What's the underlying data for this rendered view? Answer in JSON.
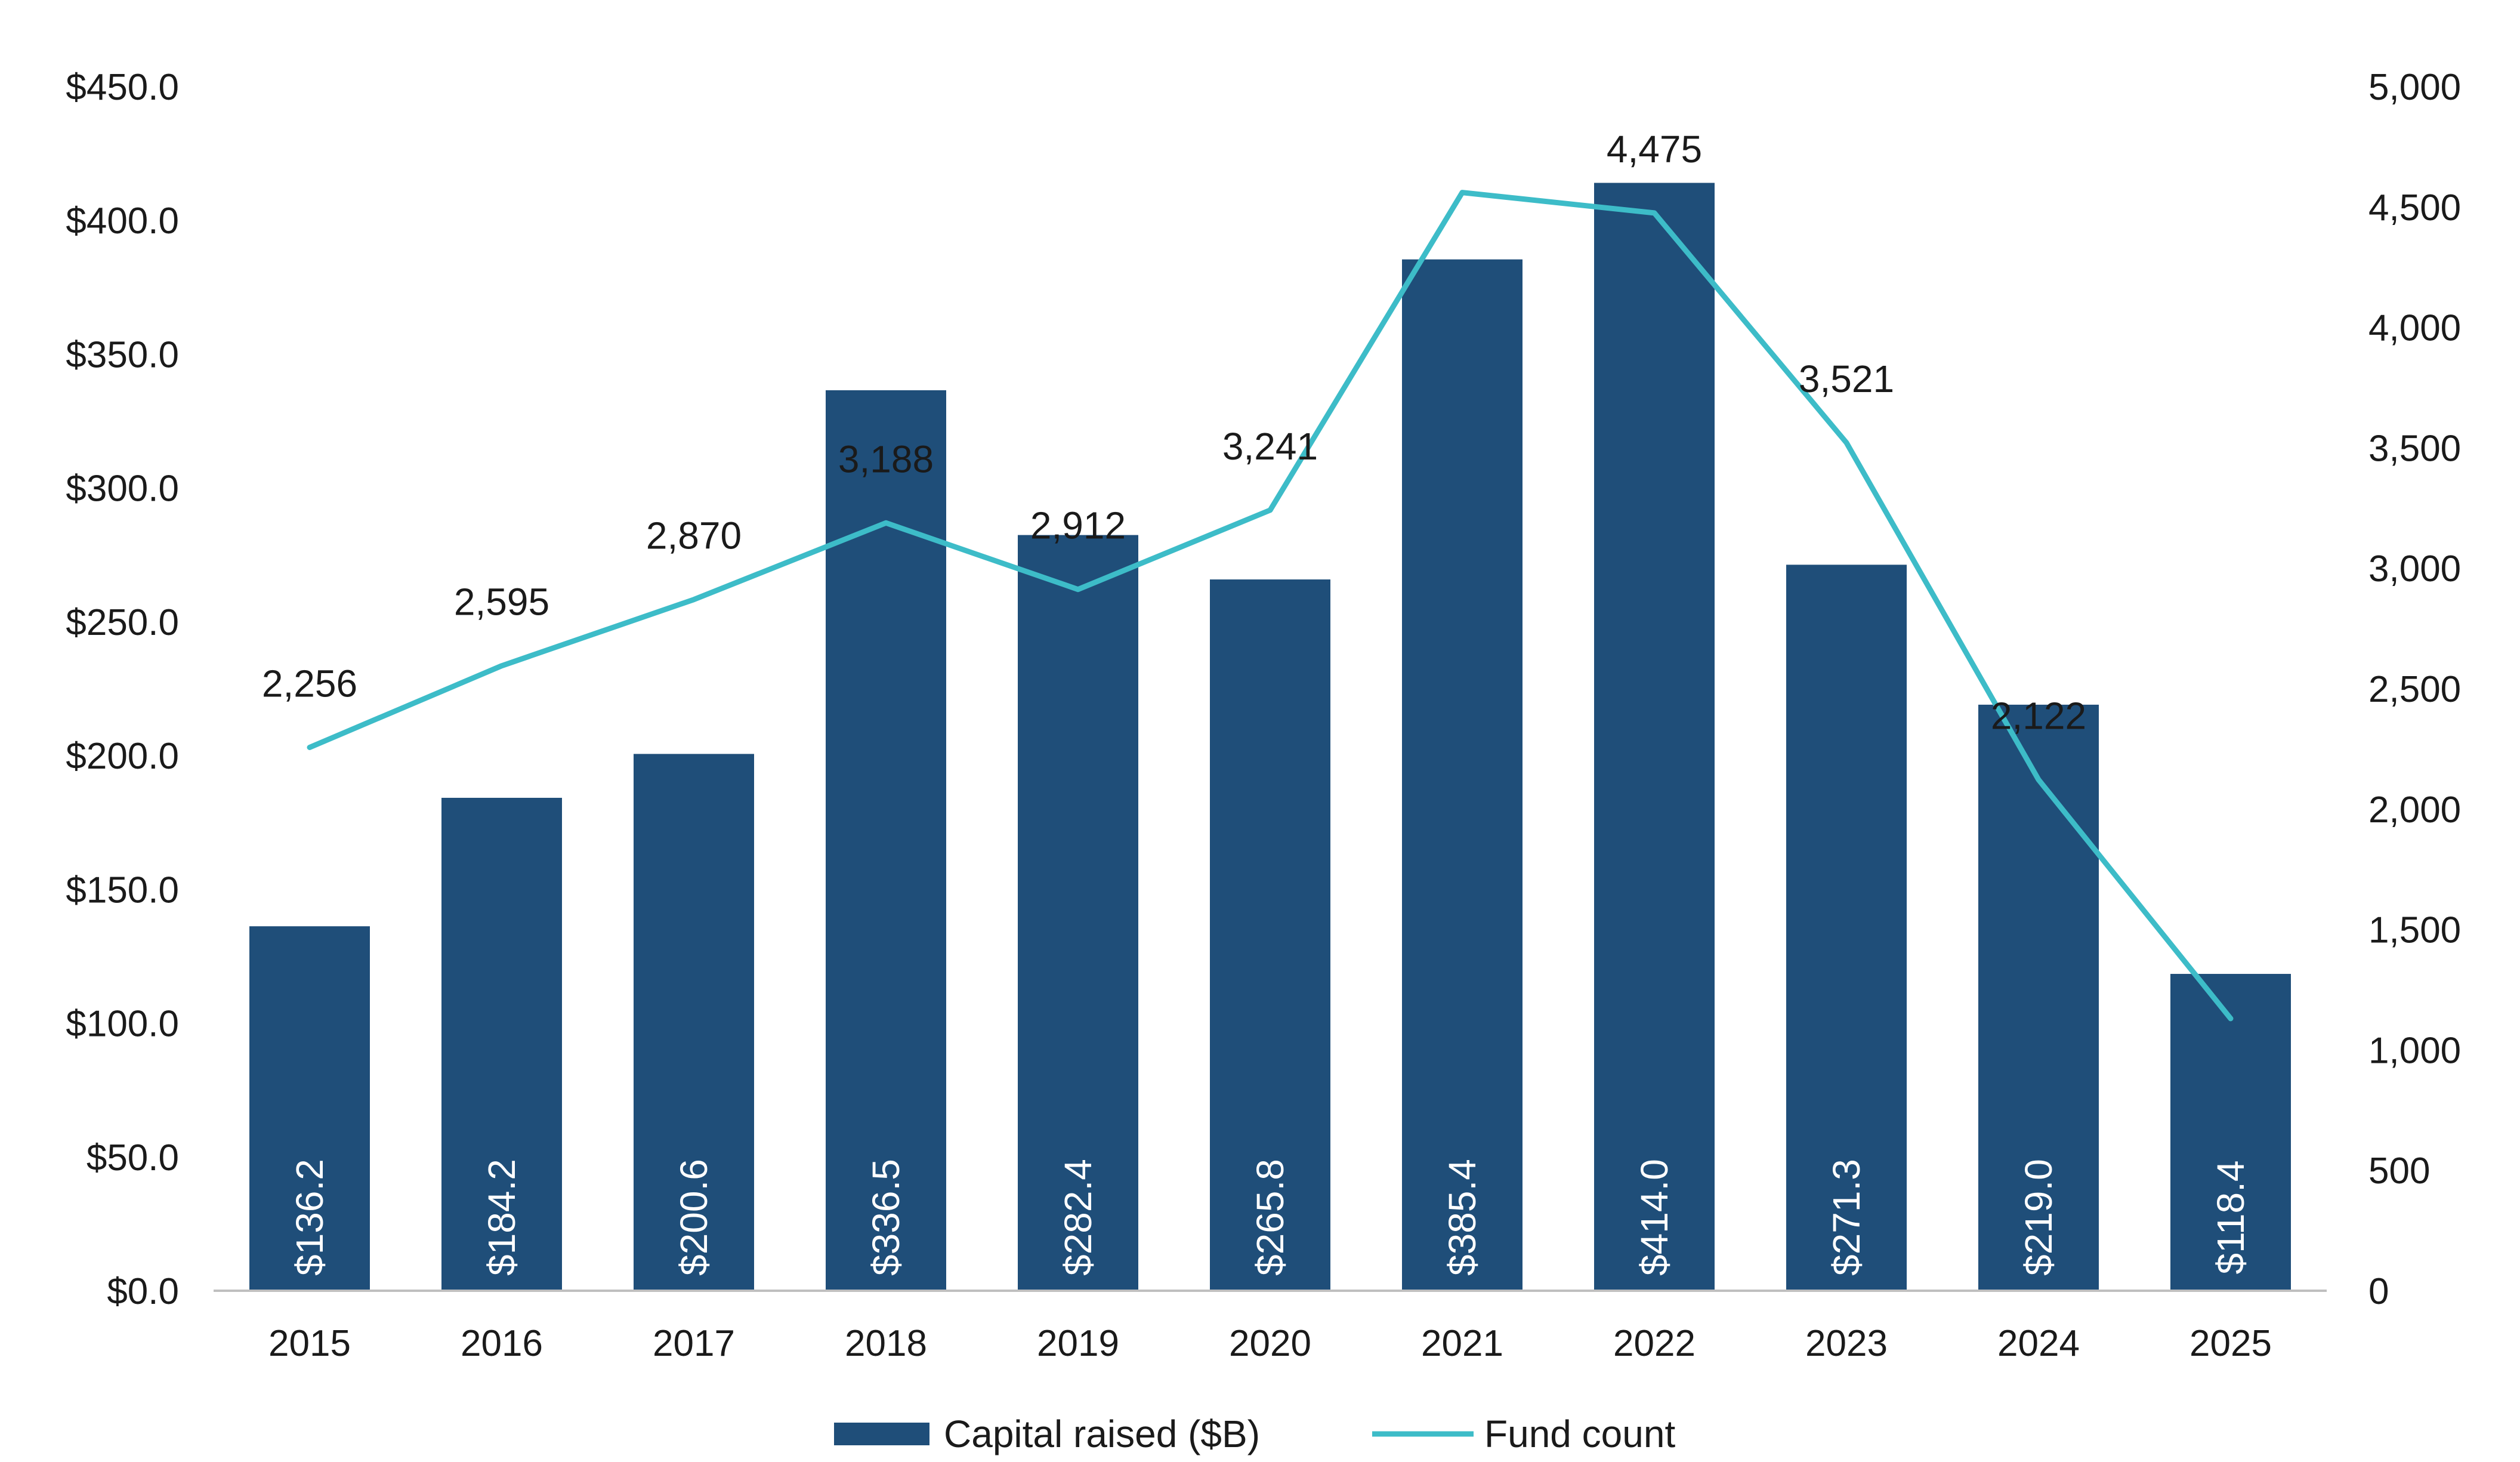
{
  "colors": {
    "bar": "#1f4e79",
    "line": "#3dbcc8",
    "axis": "#bfbfbf",
    "bar_label": "#ffffff",
    "text": "#1a1a1a"
  },
  "chart_data": {
    "type": "bar",
    "categories": [
      "2015",
      "2016",
      "2017",
      "2018",
      "2019",
      "2020",
      "2021",
      "2022",
      "2023",
      "2024",
      "2025"
    ],
    "series": [
      {
        "name": "Capital raised ($B)",
        "type": "bar",
        "axis": "left",
        "values": [
          136.2,
          184.2,
          200.6,
          336.5,
          282.4,
          265.8,
          385.4,
          414.0,
          271.3,
          219.0,
          118.4
        ],
        "labels": [
          "$136.2",
          "$184.2",
          "$200.6",
          "$336.5",
          "$282.4",
          "$265.8",
          "$385.4",
          "$414.0",
          "$271.3",
          "$219.0",
          "$118.4"
        ]
      },
      {
        "name": "Fund count",
        "type": "line",
        "axis": "right",
        "values": [
          2256,
          2595,
          2870,
          3188,
          2912,
          3241,
          4560,
          4475,
          3521,
          2122,
          1130
        ],
        "labels": [
          "2,256",
          "2,595",
          "2,870",
          "3,188",
          "2,912",
          "3,241",
          "",
          "4,475",
          "3,521",
          "2,122",
          ""
        ]
      }
    ],
    "y_left": {
      "min": 0,
      "max": 450,
      "ticks": [
        0,
        50,
        100,
        150,
        200,
        250,
        300,
        350,
        400,
        450
      ],
      "tick_labels": [
        "$0.0",
        "$50.0",
        "$100.0",
        "$150.0",
        "$200.0",
        "$250.0",
        "$300.0",
        "$350.0",
        "$400.0",
        "$450.0"
      ]
    },
    "y_right": {
      "min": 0,
      "max": 5000,
      "ticks": [
        0,
        500,
        1000,
        1500,
        2000,
        2500,
        3000,
        3500,
        4000,
        4500,
        5000
      ],
      "tick_labels": [
        "0",
        "500",
        "1,000",
        "1,500",
        "2,000",
        "2,500",
        "3,000",
        "3,500",
        "4,000",
        "4,500",
        "5,000"
      ]
    },
    "grid": false,
    "legend": {
      "position": "bottom",
      "entries": [
        "Capital raised ($B)",
        "Fund count"
      ]
    }
  }
}
